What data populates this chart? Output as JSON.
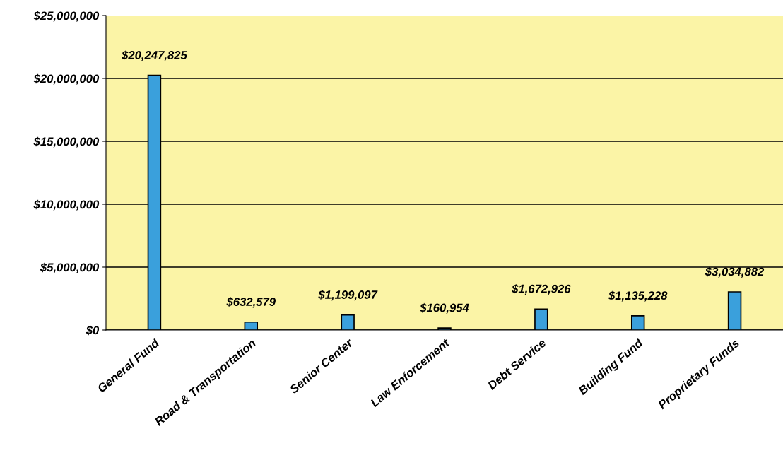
{
  "chart_data": {
    "type": "bar",
    "categories": [
      "General Fund",
      "Road & Transportation",
      "Senior Center",
      "Law Enforcement",
      "Debt Service",
      "Building Fund",
      "Proprietary Funds"
    ],
    "values": [
      20247825,
      632579,
      1199097,
      160954,
      1672926,
      1135228,
      3034882
    ],
    "value_labels": [
      "$20,247,825",
      "$632,579",
      "$1,199,097",
      "$160,954",
      "$1,672,926",
      "$1,135,228",
      "$3,034,882"
    ],
    "color": "#3aa0dc",
    "ylim": [
      0,
      25000000
    ],
    "yticks": [
      {
        "value": 0,
        "label": "$0"
      },
      {
        "value": 5000000,
        "label": "$5,000,000"
      },
      {
        "value": 10000000,
        "label": "$10,000,000"
      },
      {
        "value": 15000000,
        "label": "$15,000,000"
      },
      {
        "value": 20000000,
        "label": "$20,000,000"
      },
      {
        "value": 25000000,
        "label": "$25,000,000"
      }
    ],
    "grid": "y"
  }
}
